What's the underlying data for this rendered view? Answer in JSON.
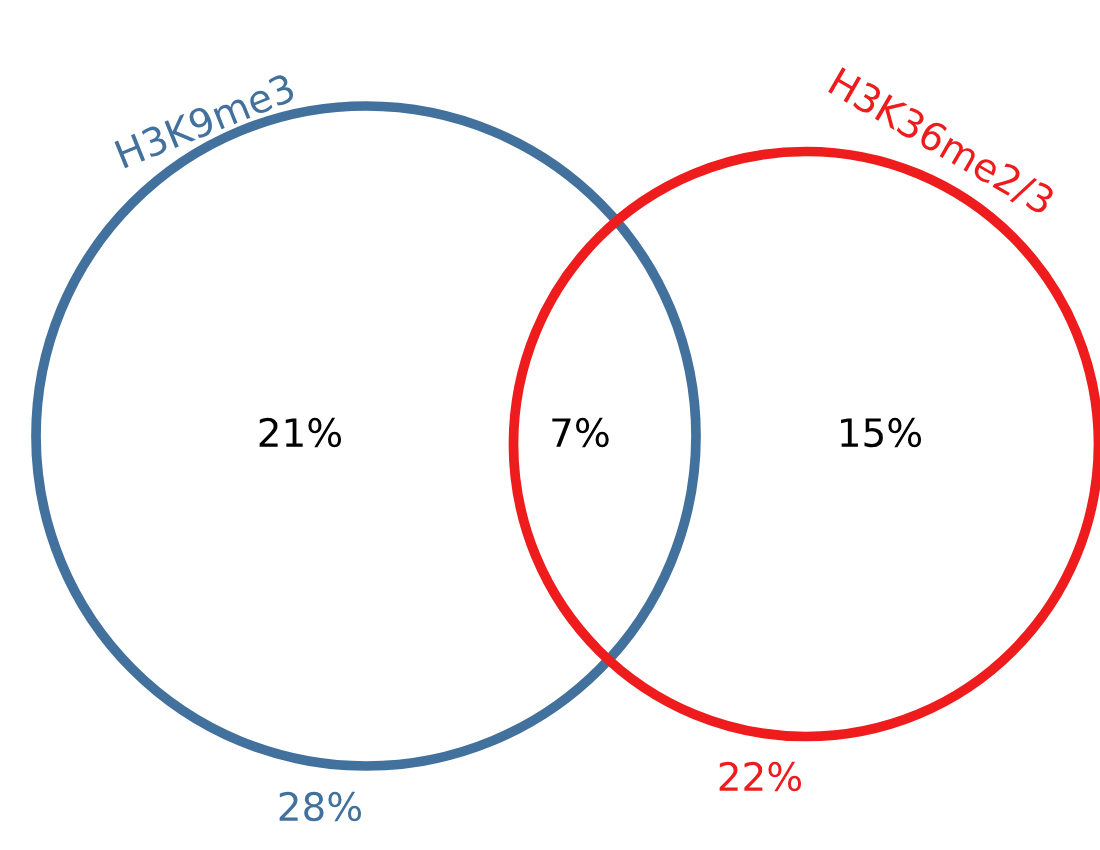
{
  "chart_data": {
    "type": "other",
    "categories": [
      null,
      null,
      null
    ],
    "values": [
      21,
      7,
      15
    ],
    "value_labels": [
      "21%",
      "7%",
      "15%"
    ],
    "totals": [
      "28%",
      "22%"
    ],
    "colors": [
      "#41719c",
      "#000000",
      "#ee1c1c"
    ],
    "annotations": [
      "H3K9me3",
      "H3K36me2/3"
    ]
  }
}
